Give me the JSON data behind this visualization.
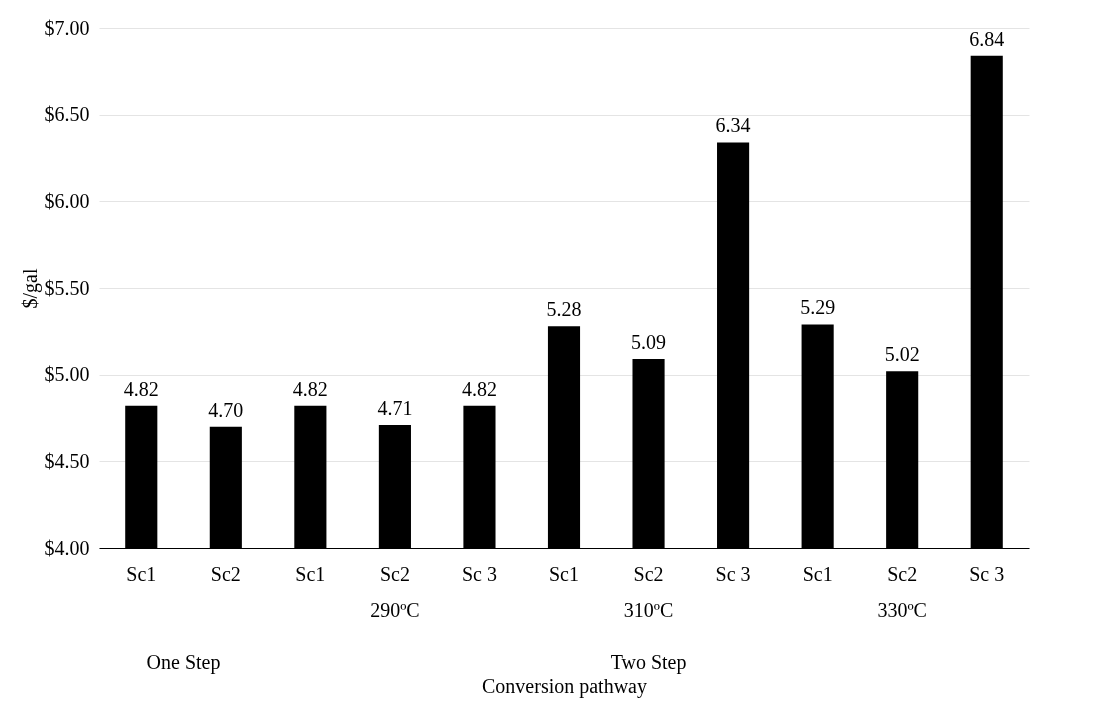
{
  "chart_data": {
    "type": "bar",
    "xlabel": "Conversion pathway",
    "ylabel": "$/gal",
    "categories": [
      "Sc1",
      "Sc2",
      "Sc1",
      "Sc2",
      "Sc 3",
      "Sc1",
      "Sc2",
      "Sc 3",
      "Sc1",
      "Sc2",
      "Sc 3"
    ],
    "values": [
      4.82,
      4.7,
      4.82,
      4.71,
      4.82,
      5.28,
      5.09,
      6.34,
      5.29,
      5.02,
      6.84
    ],
    "value_labels": [
      "4.82",
      "4.70",
      "4.82",
      "4.71",
      "4.82",
      "5.28",
      "5.09",
      "6.34",
      "5.29",
      "5.02",
      "6.84"
    ],
    "color": "#000000",
    "grid": "y",
    "ylim": [
      4,
      7
    ],
    "yticks": [
      {
        "value": 4,
        "label": "$4.00"
      },
      {
        "value": 4.5,
        "label": "$4.50"
      },
      {
        "value": 5,
        "label": "$5.00"
      },
      {
        "value": 5.5,
        "label": "$5.50"
      },
      {
        "value": 6,
        "label": "$6.00"
      },
      {
        "value": 6.5,
        "label": "$6.50"
      },
      {
        "value": 7,
        "label": "$7.00"
      }
    ],
    "annotations": [
      "290ºC",
      "310ºC",
      "330ºC",
      "One Step",
      "Two Step"
    ]
  }
}
